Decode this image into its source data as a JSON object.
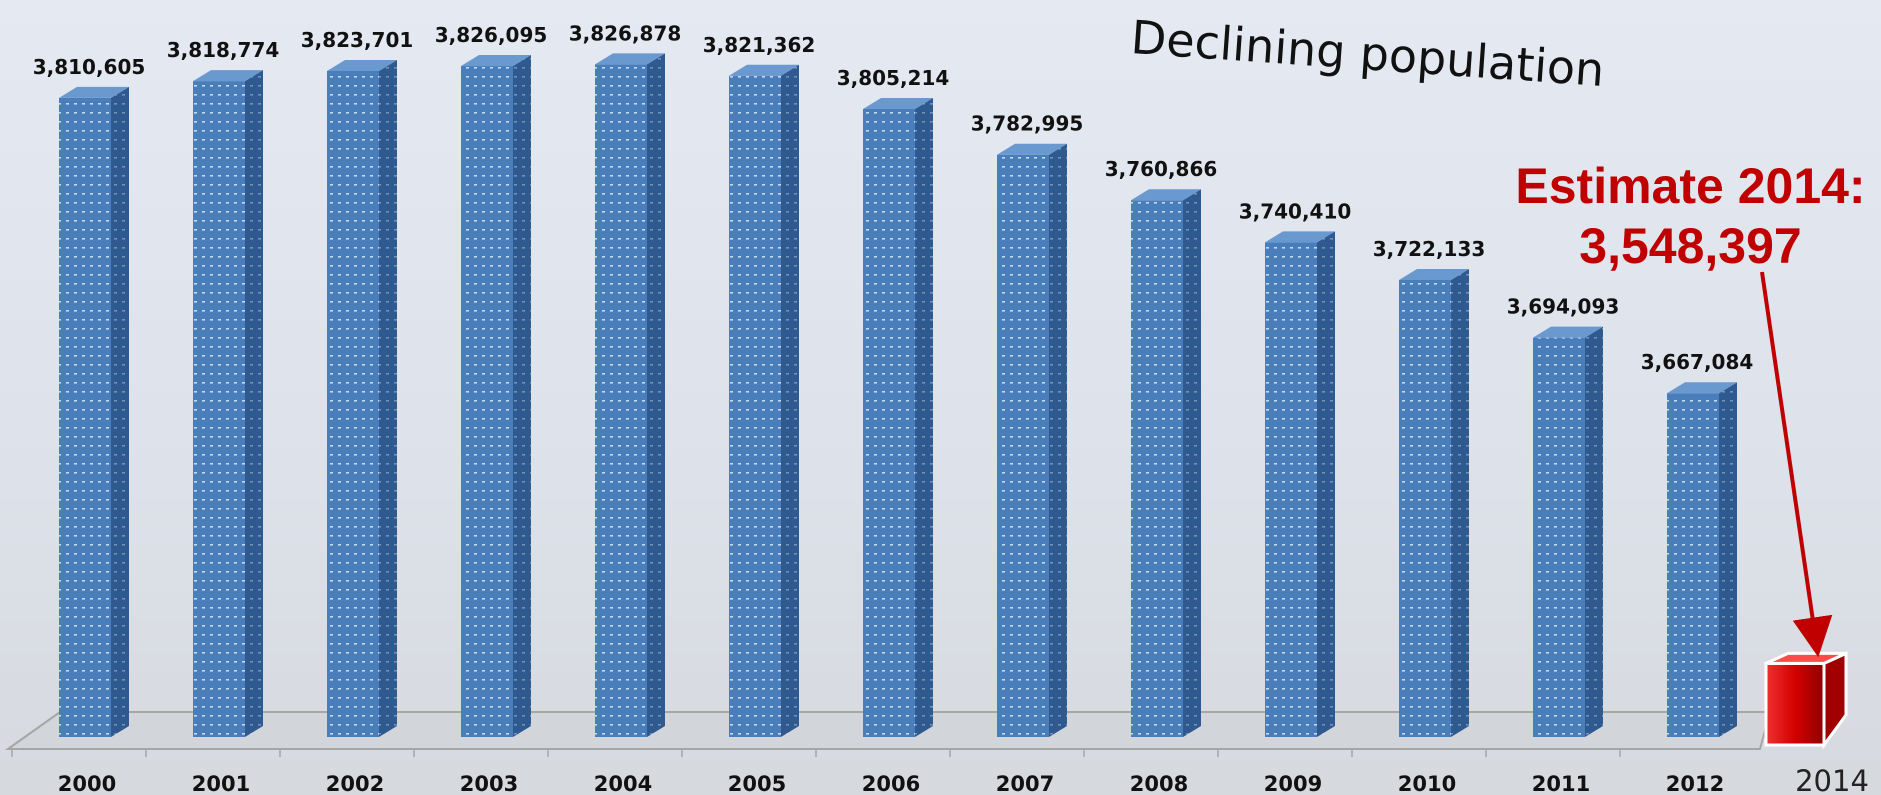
{
  "chart_data": {
    "type": "bar",
    "title": "Declining population",
    "categories": [
      "2000",
      "2001",
      "2002",
      "2003",
      "2004",
      "2005",
      "2006",
      "2007",
      "2008",
      "2009",
      "2010",
      "2011",
      "2012"
    ],
    "values": [
      3810605,
      3818774,
      3823701,
      3826095,
      3826878,
      3821362,
      3805214,
      3782995,
      3760866,
      3740410,
      3722133,
      3694093,
      3667084
    ],
    "value_labels": [
      "3,810,605",
      "3,818,774",
      "3,823,701",
      "3,826,095",
      "3,826,878",
      "3,821,362",
      "3,805,214",
      "3,782,995",
      "3,760,866",
      "3,740,410",
      "3,722,133",
      "3,694,093",
      "3,667,084"
    ],
    "estimate": {
      "category": "2014",
      "value": 3548397,
      "label_line1": "Estimate 2014:",
      "label_line2": "3,548,397"
    },
    "xlabel": "",
    "ylabel": "",
    "ylim": [
      3500000,
      3830000
    ],
    "grid": false,
    "legend": "none",
    "colors": {
      "bar": "#4a7ebb",
      "bar_side": "#2f5a8f",
      "bar_top": "#6a99d0",
      "estimate_bar": "#d40000",
      "estimate_text": "#c00000",
      "floor": "#a6a6a6"
    }
  }
}
